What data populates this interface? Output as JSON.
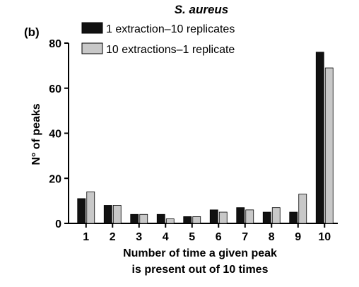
{
  "panel_label": "(b)",
  "chart_data": {
    "type": "bar",
    "title": "S. aureus",
    "xlabel": [
      "Number of time a given peak",
      "is present out of 10 times"
    ],
    "ylabel": "N° of peaks",
    "categories": [
      "1",
      "2",
      "3",
      "4",
      "5",
      "6",
      "7",
      "8",
      "9",
      "10"
    ],
    "ylim": [
      0,
      80
    ],
    "yticks": [
      0,
      20,
      40,
      60,
      80
    ],
    "grid": false,
    "legend": "top",
    "series": [
      {
        "name": "1 extraction–10 replicates",
        "color": "#111111",
        "values": [
          11,
          8,
          4,
          4,
          3,
          6,
          7,
          5,
          5,
          76
        ]
      },
      {
        "name": "10 extractions–1 replicate",
        "color": "#c8c8c8",
        "values": [
          14,
          8,
          4,
          2,
          3,
          5,
          6,
          7,
          13,
          69
        ]
      }
    ]
  }
}
